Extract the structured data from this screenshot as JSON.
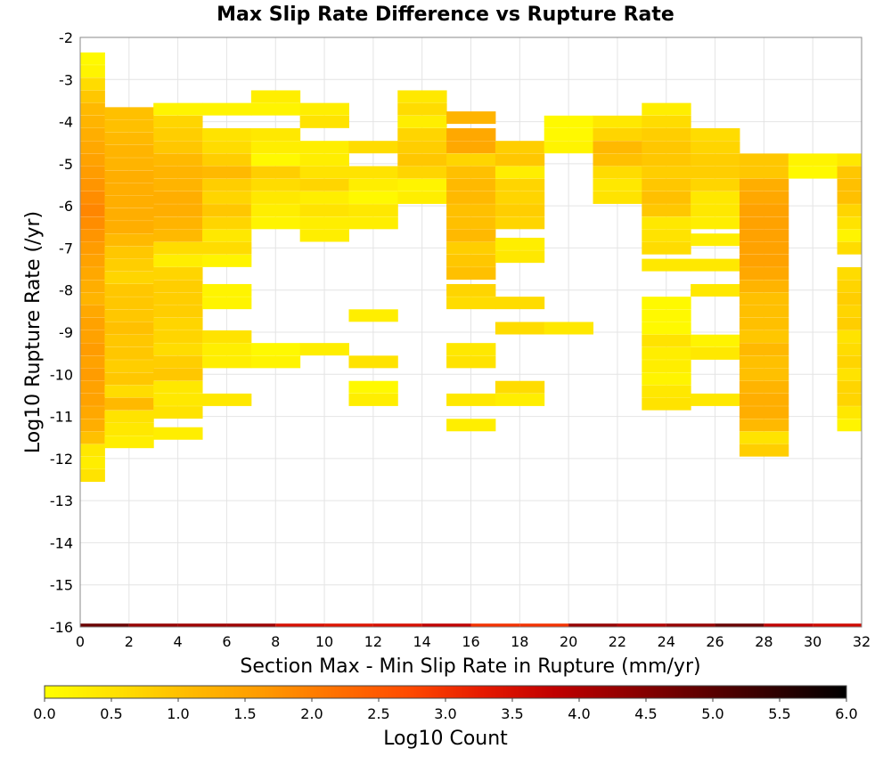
{
  "chart_data": {
    "type": "heatmap",
    "title": "Max Slip Rate Difference vs Rupture Rate",
    "xlabel": "Section Max - Min Slip Rate in Rupture (mm/yr)",
    "ylabel": "Log10 Rupture Rate (/yr)",
    "xlim": [
      0,
      32
    ],
    "ylim": [
      -16,
      -2
    ],
    "x_ticks": [
      "0",
      "2",
      "4",
      "6",
      "8",
      "10",
      "12",
      "14",
      "16",
      "18",
      "20",
      "22",
      "24",
      "26",
      "28",
      "30",
      "32"
    ],
    "y_ticks": [
      "-2",
      "-3",
      "-4",
      "-5",
      "-6",
      "-7",
      "-8",
      "-9",
      "-10",
      "-11",
      "-12",
      "-13",
      "-14",
      "-15",
      "-16"
    ],
    "grid": true,
    "x_bin_width": 2,
    "y_bin_height": 0.2857,
    "colorbar": {
      "label": "Log10 Count",
      "range": [
        0.0,
        6.0
      ],
      "ticks": [
        "0.0",
        "0.5",
        "1.0",
        "1.5",
        "2.0",
        "2.5",
        "3.0",
        "3.5",
        "4.0",
        "4.5",
        "5.0",
        "5.5",
        "6.0"
      ],
      "colormap": [
        "#ffff00",
        "#ffe000",
        "#ffba00",
        "#ff9a00",
        "#ff7000",
        "#ff4a00",
        "#e61a00",
        "#c00000",
        "#900000",
        "#600000",
        "#300000",
        "#000000"
      ]
    },
    "columns": [
      {
        "x": 0,
        "cells": [
          [
            -2.5,
            0.1
          ],
          [
            -2.8,
            0.2
          ],
          [
            -3.1,
            0.6
          ],
          [
            -3.4,
            0.9
          ],
          [
            -3.7,
            1.1
          ],
          [
            -4.0,
            1.2
          ],
          [
            -4.3,
            1.3
          ],
          [
            -4.6,
            1.4
          ],
          [
            -4.9,
            1.5
          ],
          [
            -5.2,
            1.6
          ],
          [
            -5.5,
            1.7
          ],
          [
            -5.8,
            1.8
          ],
          [
            -6.1,
            1.9
          ],
          [
            -6.4,
            1.8
          ],
          [
            -6.7,
            1.7
          ],
          [
            -7.0,
            1.6
          ],
          [
            -7.3,
            1.5
          ],
          [
            -7.6,
            1.4
          ],
          [
            -7.9,
            1.3
          ],
          [
            -8.2,
            1.2
          ],
          [
            -8.5,
            1.4
          ],
          [
            -8.8,
            1.5
          ],
          [
            -9.1,
            1.5
          ],
          [
            -9.4,
            1.6
          ],
          [
            -9.7,
            1.5
          ],
          [
            -10.0,
            1.6
          ],
          [
            -10.3,
            1.5
          ],
          [
            -10.6,
            1.5
          ],
          [
            -10.9,
            1.4
          ],
          [
            -11.2,
            1.3
          ],
          [
            -11.5,
            1.0
          ],
          [
            -11.8,
            0.4
          ],
          [
            -12.1,
            0.3
          ],
          [
            -12.4,
            0.5
          ]
        ]
      },
      {
        "x": 2,
        "cells": [
          [
            -3.8,
            1.0
          ],
          [
            -4.1,
            1.0
          ],
          [
            -4.4,
            1.1
          ],
          [
            -4.7,
            1.2
          ],
          [
            -5.0,
            1.2
          ],
          [
            -5.3,
            1.3
          ],
          [
            -5.6,
            1.3
          ],
          [
            -5.9,
            1.3
          ],
          [
            -6.2,
            1.3
          ],
          [
            -6.5,
            1.3
          ],
          [
            -6.8,
            1.1
          ],
          [
            -7.1,
            0.9
          ],
          [
            -7.4,
            0.8
          ],
          [
            -7.7,
            0.7
          ],
          [
            -8.0,
            0.9
          ],
          [
            -8.3,
            0.9
          ],
          [
            -8.6,
            0.9
          ],
          [
            -8.9,
            1.0
          ],
          [
            -9.2,
            0.9
          ],
          [
            -9.5,
            0.9
          ],
          [
            -9.8,
            0.8
          ],
          [
            -10.1,
            0.9
          ],
          [
            -10.4,
            0.6
          ],
          [
            -10.7,
            1.1
          ],
          [
            -11.0,
            0.5
          ],
          [
            -11.3,
            0.4
          ],
          [
            -11.6,
            0.3
          ]
        ]
      },
      {
        "x": 4,
        "cells": [
          [
            -3.7,
            0.2
          ],
          [
            -4.0,
            0.7
          ],
          [
            -4.3,
            0.8
          ],
          [
            -4.6,
            0.9
          ],
          [
            -4.9,
            1.1
          ],
          [
            -5.2,
            1.2
          ],
          [
            -5.5,
            1.2
          ],
          [
            -5.8,
            1.3
          ],
          [
            -6.1,
            1.3
          ],
          [
            -6.4,
            1.2
          ],
          [
            -6.7,
            1.1
          ],
          [
            -7.0,
            0.6
          ],
          [
            -7.3,
            0.3
          ],
          [
            -7.6,
            0.7
          ],
          [
            -7.9,
            0.8
          ],
          [
            -8.2,
            0.8
          ],
          [
            -8.5,
            0.8
          ],
          [
            -8.8,
            0.7
          ],
          [
            -9.1,
            0.7
          ],
          [
            -9.4,
            0.6
          ],
          [
            -9.7,
            0.8
          ],
          [
            -10.0,
            0.9
          ],
          [
            -10.3,
            0.4
          ],
          [
            -10.6,
            0.4
          ],
          [
            -10.9,
            0.5
          ],
          [
            -11.4,
            0.3
          ]
        ]
      },
      {
        "x": 6,
        "cells": [
          [
            -3.7,
            0.2
          ],
          [
            -4.3,
            0.5
          ],
          [
            -4.6,
            0.6
          ],
          [
            -4.9,
            0.8
          ],
          [
            -5.2,
            1.1
          ],
          [
            -5.5,
            0.8
          ],
          [
            -5.8,
            0.7
          ],
          [
            -6.1,
            0.9
          ],
          [
            -6.4,
            0.7
          ],
          [
            -6.7,
            0.4
          ],
          [
            -7.0,
            0.6
          ],
          [
            -7.3,
            0.2
          ],
          [
            -8.0,
            0.2
          ],
          [
            -8.3,
            0.2
          ],
          [
            -9.1,
            0.5
          ],
          [
            -9.4,
            0.3
          ],
          [
            -9.7,
            0.3
          ],
          [
            -10.6,
            0.4
          ]
        ]
      },
      {
        "x": 8,
        "cells": [
          [
            -3.4,
            0.3
          ],
          [
            -3.7,
            0.2
          ],
          [
            -4.3,
            0.4
          ],
          [
            -4.6,
            0.3
          ],
          [
            -4.9,
            0.1
          ],
          [
            -5.2,
            0.8
          ],
          [
            -5.5,
            0.6
          ],
          [
            -5.8,
            0.4
          ],
          [
            -6.1,
            0.3
          ],
          [
            -6.4,
            0.2
          ],
          [
            -9.4,
            0.1
          ],
          [
            -9.7,
            0.2
          ]
        ]
      },
      {
        "x": 10,
        "cells": [
          [
            -3.7,
            0.3
          ],
          [
            -4.0,
            0.5
          ],
          [
            -4.6,
            0.3
          ],
          [
            -4.9,
            0.3
          ],
          [
            -5.2,
            0.5
          ],
          [
            -5.5,
            0.7
          ],
          [
            -5.8,
            0.3
          ],
          [
            -6.1,
            0.5
          ],
          [
            -6.4,
            0.3
          ],
          [
            -6.7,
            0.3
          ],
          [
            -9.4,
            0.3
          ]
        ]
      },
      {
        "x": 12,
        "cells": [
          [
            -4.6,
            0.6
          ],
          [
            -5.2,
            0.5
          ],
          [
            -5.5,
            0.3
          ],
          [
            -5.8,
            0.1
          ],
          [
            -6.1,
            0.4
          ],
          [
            -6.4,
            0.3
          ],
          [
            -8.6,
            0.3
          ],
          [
            -9.7,
            0.5
          ],
          [
            -10.3,
            0.1
          ],
          [
            -10.6,
            0.3
          ]
        ]
      },
      {
        "x": 14,
        "cells": [
          [
            -3.4,
            0.4
          ],
          [
            -3.7,
            0.6
          ],
          [
            -4.0,
            0.3
          ],
          [
            -4.3,
            0.7
          ],
          [
            -4.6,
            0.8
          ],
          [
            -4.9,
            0.9
          ],
          [
            -5.2,
            0.7
          ],
          [
            -5.5,
            0.2
          ],
          [
            -5.8,
            0.3
          ]
        ]
      },
      {
        "x": 16,
        "cells": [
          [
            -3.9,
            1.2
          ],
          [
            -4.3,
            1.4
          ],
          [
            -4.6,
            1.4
          ],
          [
            -4.9,
            0.7
          ],
          [
            -5.2,
            1.0
          ],
          [
            -5.5,
            1.1
          ],
          [
            -5.8,
            1.1
          ],
          [
            -6.1,
            1.0
          ],
          [
            -6.4,
            1.0
          ],
          [
            -6.7,
            1.1
          ],
          [
            -7.0,
            0.8
          ],
          [
            -7.3,
            0.9
          ],
          [
            -7.6,
            1.0
          ],
          [
            -8.0,
            0.7
          ],
          [
            -8.3,
            0.6
          ],
          [
            -9.4,
            0.4
          ],
          [
            -9.7,
            0.5
          ],
          [
            -10.6,
            0.4
          ],
          [
            -11.2,
            0.3
          ]
        ]
      },
      {
        "x": 18,
        "cells": [
          [
            -4.6,
            0.8
          ],
          [
            -4.9,
            0.9
          ],
          [
            -5.2,
            0.3
          ],
          [
            -5.5,
            0.7
          ],
          [
            -5.8,
            0.7
          ],
          [
            -6.1,
            0.8
          ],
          [
            -6.4,
            0.7
          ],
          [
            -6.9,
            0.3
          ],
          [
            -7.2,
            0.4
          ],
          [
            -8.3,
            0.6
          ],
          [
            -8.9,
            0.6
          ],
          [
            -10.3,
            0.6
          ],
          [
            -10.6,
            0.3
          ]
        ]
      },
      {
        "x": 20,
        "cells": [
          [
            -4.0,
            0.1
          ],
          [
            -4.3,
            0.1
          ],
          [
            -4.6,
            0.2
          ],
          [
            -8.9,
            0.4
          ]
        ]
      },
      {
        "x": 22,
        "cells": [
          [
            -4.0,
            0.4
          ],
          [
            -4.3,
            0.7
          ],
          [
            -4.6,
            1.1
          ],
          [
            -4.9,
            1.0
          ],
          [
            -5.2,
            0.6
          ],
          [
            -5.5,
            0.4
          ],
          [
            -5.8,
            0.5
          ]
        ]
      },
      {
        "x": 24,
        "cells": [
          [
            -3.7,
            0.3
          ],
          [
            -4.0,
            0.6
          ],
          [
            -4.3,
            0.8
          ],
          [
            -4.6,
            0.9
          ],
          [
            -4.9,
            0.9
          ],
          [
            -5.2,
            0.8
          ],
          [
            -5.5,
            0.9
          ],
          [
            -5.8,
            1.0
          ],
          [
            -6.1,
            0.9
          ],
          [
            -6.4,
            0.4
          ],
          [
            -6.7,
            0.5
          ],
          [
            -7.0,
            0.6
          ],
          [
            -7.4,
            0.4
          ],
          [
            -8.3,
            0.1
          ],
          [
            -8.6,
            0.1
          ],
          [
            -8.9,
            0.1
          ],
          [
            -9.2,
            0.5
          ],
          [
            -9.5,
            0.3
          ],
          [
            -9.8,
            0.3
          ],
          [
            -10.1,
            0.2
          ],
          [
            -10.4,
            0.4
          ],
          [
            -10.7,
            0.5
          ]
        ]
      },
      {
        "x": 26,
        "cells": [
          [
            -4.3,
            0.6
          ],
          [
            -4.6,
            0.7
          ],
          [
            -4.9,
            0.8
          ],
          [
            -5.2,
            0.8
          ],
          [
            -5.5,
            0.7
          ],
          [
            -5.8,
            0.4
          ],
          [
            -6.1,
            0.4
          ],
          [
            -6.4,
            0.3
          ],
          [
            -6.8,
            0.3
          ],
          [
            -7.4,
            0.4
          ],
          [
            -8.0,
            0.4
          ],
          [
            -9.2,
            0.2
          ],
          [
            -9.5,
            0.4
          ],
          [
            -10.6,
            0.4
          ]
        ]
      },
      {
        "x": 28,
        "cells": [
          [
            -4.9,
            0.9
          ],
          [
            -5.2,
            0.9
          ],
          [
            -5.5,
            1.3
          ],
          [
            -5.8,
            1.4
          ],
          [
            -6.1,
            1.5
          ],
          [
            -6.4,
            1.5
          ],
          [
            -6.7,
            1.5
          ],
          [
            -7.0,
            1.5
          ],
          [
            -7.3,
            1.5
          ],
          [
            -7.6,
            1.4
          ],
          [
            -7.9,
            1.2
          ],
          [
            -8.2,
            1.0
          ],
          [
            -8.5,
            1.0
          ],
          [
            -8.8,
            1.0
          ],
          [
            -9.1,
            0.9
          ],
          [
            -9.4,
            1.1
          ],
          [
            -9.7,
            1.0
          ],
          [
            -10.0,
            1.0
          ],
          [
            -10.3,
            1.2
          ],
          [
            -10.6,
            1.3
          ],
          [
            -10.9,
            1.3
          ],
          [
            -11.2,
            1.1
          ],
          [
            -11.5,
            0.5
          ],
          [
            -11.8,
            0.8
          ]
        ]
      },
      {
        "x": 30,
        "cells": [
          [
            -4.9,
            0.2
          ],
          [
            -5.2,
            0.1
          ]
        ]
      },
      {
        "x": 32,
        "cells": [
          [
            -4.9,
            0.4
          ],
          [
            -5.2,
            0.9
          ],
          [
            -5.5,
            1.0
          ],
          [
            -5.8,
            1.0
          ],
          [
            -6.1,
            0.7
          ],
          [
            -6.4,
            0.5
          ],
          [
            -6.7,
            0.2
          ],
          [
            -7.0,
            0.6
          ],
          [
            -7.6,
            0.6
          ],
          [
            -7.9,
            0.7
          ],
          [
            -8.2,
            0.8
          ],
          [
            -8.5,
            0.7
          ],
          [
            -8.8,
            0.8
          ],
          [
            -9.1,
            0.5
          ],
          [
            -9.4,
            0.6
          ],
          [
            -9.7,
            0.7
          ],
          [
            -10.0,
            0.5
          ],
          [
            -10.3,
            0.7
          ],
          [
            -10.6,
            0.7
          ],
          [
            -10.9,
            0.4
          ],
          [
            -11.2,
            0.2
          ]
        ]
      }
    ],
    "bottom_row": {
      "y": -16,
      "values": [
        4.8,
        4.3,
        4.2,
        4.2,
        3.5,
        3.4,
        3.5,
        3.8,
        3.0,
        3.0,
        4.3,
        4.0,
        4.3,
        4.8,
        3.8,
        3.6
      ]
    }
  }
}
